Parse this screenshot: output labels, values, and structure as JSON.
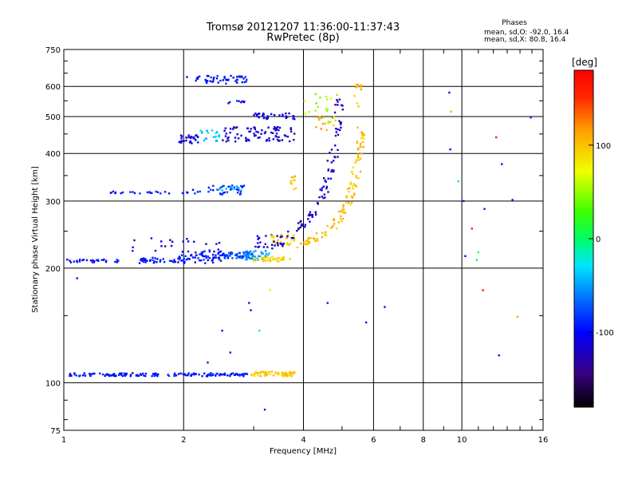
{
  "chart_data": {
    "type": "scatter",
    "title": "Tromsø 20121207 11:36:00-11:37:43",
    "subtitle": "RwPretec (8p)",
    "xlabel": "Frequency [MHz]",
    "ylabel": "Stationary phase Virtual Height [km]",
    "x_scale": "log",
    "y_scale": "log",
    "xlim": [
      1,
      16
    ],
    "ylim": [
      75,
      750
    ],
    "x_ticks": [
      1,
      2,
      4,
      6,
      8,
      10,
      16
    ],
    "x_tick_labels": [
      "1",
      "2",
      "4",
      "6",
      "8",
      "10",
      "16"
    ],
    "y_ticks": [
      75,
      100,
      200,
      300,
      400,
      500,
      600,
      750
    ],
    "y_tick_labels": [
      "75",
      "100",
      "200",
      "300",
      "400",
      "500",
      "600",
      "750"
    ],
    "grid": true,
    "phases_box": {
      "heading": "Phases",
      "line_o": "mean, sd,O: -92.0, 16.4",
      "line_x": "mean, sd,X:  80.8, 16.4"
    },
    "colorbar": {
      "label": "[deg]",
      "range": [
        -180,
        180
      ],
      "ticks": [
        100,
        0,
        -100
      ],
      "tick_labels": [
        "100",
        "0",
        "-100"
      ]
    },
    "series": [
      {
        "phase": -95,
        "x_range": [
          1.03,
          2.9
        ],
        "y_range": [
          104,
          106
        ],
        "count": 160
      },
      {
        "phase": 95,
        "x_range": [
          2.95,
          3.8
        ],
        "y_range": [
          104,
          107
        ],
        "count": 70
      },
      {
        "phase": -95,
        "x_range": [
          1.0,
          1.4
        ],
        "y_range": [
          207,
          211
        ],
        "count": 30
      },
      {
        "phase": -95,
        "x_range": [
          1.55,
          2.1
        ],
        "y_range": [
          206,
          213
        ],
        "count": 40
      },
      {
        "phase": -95,
        "x_range": [
          1.95,
          2.5
        ],
        "y_range": [
          206,
          222
        ],
        "count": 60
      },
      {
        "phase": -80,
        "x_range": [
          2.5,
          3.0
        ],
        "y_range": [
          212,
          220
        ],
        "count": 60
      },
      {
        "phase": -50,
        "x_range": [
          2.8,
          3.3
        ],
        "y_range": [
          210,
          222
        ],
        "count": 40
      },
      {
        "phase": 90,
        "x_range": [
          3.0,
          3.7
        ],
        "y_range": [
          208,
          214
        ],
        "count": 40
      },
      {
        "phase": -110,
        "x_range": [
          3.0,
          3.6
        ],
        "y_range": [
          225,
          245
        ],
        "count": 25
      },
      {
        "phase": 90,
        "x_range": [
          3.3,
          3.8
        ],
        "y_range": [
          230,
          245
        ],
        "count": 25
      },
      {
        "phase": -110,
        "x_range": [
          1.4,
          2.5
        ],
        "y_range": [
          222,
          240
        ],
        "count": 20
      },
      {
        "phase": -95,
        "x_range": [
          1.3,
          2.1
        ],
        "y_range": [
          314,
          318
        ],
        "count": 25
      },
      {
        "phase": -90,
        "x_range": [
          2.1,
          2.9
        ],
        "y_range": [
          312,
          330
        ],
        "count": 35
      },
      {
        "phase": -40,
        "x_range": [
          2.4,
          2.8
        ],
        "y_range": [
          318,
          328
        ],
        "count": 12
      },
      {
        "phase": -110,
        "x_range": [
          1.95,
          2.2
        ],
        "y_range": [
          425,
          450
        ],
        "count": 30
      },
      {
        "phase": -40,
        "x_range": [
          2.2,
          2.5
        ],
        "y_range": [
          430,
          460
        ],
        "count": 20
      },
      {
        "phase": -120,
        "x_range": [
          2.5,
          3.8
        ],
        "y_range": [
          430,
          470
        ],
        "count": 80
      },
      {
        "phase": -110,
        "x_range": [
          3.0,
          3.8
        ],
        "y_range": [
          490,
          510
        ],
        "count": 30
      },
      {
        "phase": -95,
        "x_range": [
          2.1,
          2.9
        ],
        "y_range": [
          610,
          640
        ],
        "count": 50
      },
      {
        "phase": -100,
        "x_range": [
          2.45,
          2.85
        ],
        "y_range": [
          540,
          550
        ],
        "count": 8
      },
      {
        "phase": 100,
        "x_range": [
          3.7,
          3.85
        ],
        "y_range": [
          320,
          350
        ],
        "count": 10
      },
      {
        "phase": 50,
        "x_range": [
          4.0,
          4.9
        ],
        "y_range": [
          480,
          580
        ],
        "count": 20
      },
      {
        "phase": 110,
        "x_range": [
          4.3,
          4.8
        ],
        "y_range": [
          460,
          500
        ],
        "count": 12
      },
      {
        "phase": 105,
        "x_range": [
          5.3,
          5.6
        ],
        "y_range": [
          520,
          610
        ],
        "count": 10
      }
    ],
    "curves": [
      {
        "phase": -120,
        "points": [
          [
            3.4,
            228
          ],
          [
            3.8,
            250
          ],
          [
            4.1,
            270
          ],
          [
            4.4,
            300
          ],
          [
            4.6,
            340
          ],
          [
            4.75,
            390
          ],
          [
            4.85,
            440
          ],
          [
            4.9,
            490
          ],
          [
            4.95,
            560
          ]
        ],
        "count": 90
      },
      {
        "phase": 100,
        "points": [
          [
            3.9,
            230
          ],
          [
            4.3,
            240
          ],
          [
            4.8,
            260
          ],
          [
            5.1,
            285
          ],
          [
            5.3,
            320
          ],
          [
            5.45,
            370
          ],
          [
            5.55,
            420
          ],
          [
            5.6,
            460
          ]
        ],
        "count": 110
      }
    ],
    "scatter_points": [
      {
        "x": 1.08,
        "y": 188,
        "phase": -95
      },
      {
        "x": 2.04,
        "y": 635,
        "phase": -95
      },
      {
        "x": 2.5,
        "y": 137,
        "phase": -95
      },
      {
        "x": 2.62,
        "y": 120,
        "phase": -95
      },
      {
        "x": 2.3,
        "y": 113,
        "phase": -95
      },
      {
        "x": 2.92,
        "y": 162,
        "phase": -95
      },
      {
        "x": 2.95,
        "y": 155,
        "phase": -95
      },
      {
        "x": 3.1,
        "y": 137,
        "phase": 0
      },
      {
        "x": 3.2,
        "y": 85,
        "phase": -95
      },
      {
        "x": 3.3,
        "y": 175,
        "phase": 80
      },
      {
        "x": 4.6,
        "y": 162,
        "phase": -95
      },
      {
        "x": 5.75,
        "y": 144,
        "phase": -95
      },
      {
        "x": 6.4,
        "y": 158,
        "phase": -95
      },
      {
        "x": 9.3,
        "y": 578,
        "phase": -95
      },
      {
        "x": 9.4,
        "y": 515,
        "phase": 110
      },
      {
        "x": 9.35,
        "y": 410,
        "phase": -95
      },
      {
        "x": 9.8,
        "y": 338,
        "phase": 0
      },
      {
        "x": 10.1,
        "y": 300,
        "phase": -95
      },
      {
        "x": 10.2,
        "y": 215,
        "phase": -95
      },
      {
        "x": 10.6,
        "y": 254,
        "phase": 160
      },
      {
        "x": 10.9,
        "y": 210,
        "phase": 0
      },
      {
        "x": 11.0,
        "y": 220,
        "phase": 0
      },
      {
        "x": 11.3,
        "y": 175,
        "phase": 160
      },
      {
        "x": 11.4,
        "y": 286,
        "phase": -95
      },
      {
        "x": 12.2,
        "y": 441,
        "phase": 160
      },
      {
        "x": 12.6,
        "y": 375,
        "phase": -95
      },
      {
        "x": 12.4,
        "y": 118,
        "phase": -95
      },
      {
        "x": 13.4,
        "y": 302,
        "phase": -95
      },
      {
        "x": 13.8,
        "y": 149,
        "phase": 110
      },
      {
        "x": 14.9,
        "y": 497,
        "phase": -95
      }
    ]
  }
}
